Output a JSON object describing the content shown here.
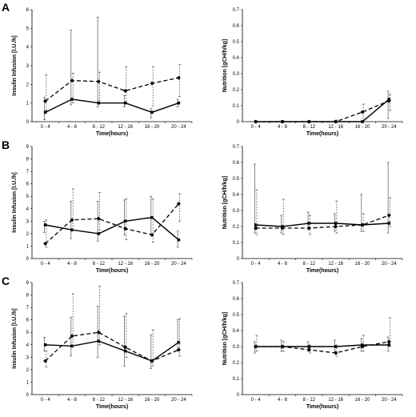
{
  "panel_letters": [
    "A",
    "B",
    "C"
  ],
  "chart_data": [
    {
      "type": "line",
      "panel": "A",
      "categories": [
        "0 - 4",
        "4 - 8",
        "8 - 12",
        "12 - 16",
        "16 - 20",
        "20 - 24"
      ],
      "xlabel": "Time(hours)",
      "ylabel": "Insulin Infusion [I.U./h]",
      "ylim": [
        0,
        6
      ],
      "yticks": [
        0,
        1,
        2,
        3,
        4,
        5,
        6
      ],
      "series": [
        {
          "style": "solid",
          "values": [
            0.5,
            1.2,
            1.0,
            1.0,
            0.5,
            1.0
          ],
          "err_up": [
            0.8,
            3.7,
            4.6,
            0.4,
            0.2,
            0.2
          ],
          "err_down": [
            0.4,
            0.3,
            0.2,
            0.2,
            0.3,
            0.2
          ]
        },
        {
          "style": "dashed",
          "values": [
            1.1,
            2.2,
            2.15,
            1.65,
            2.05,
            2.35
          ],
          "err_up": [
            1.4,
            0.4,
            0.5,
            1.3,
            0.9,
            0.7
          ],
          "err_down": [
            0.5,
            1.2,
            1.0,
            0.6,
            1.2,
            1.0
          ]
        }
      ]
    },
    {
      "type": "line",
      "panel": "A",
      "categories": [
        "0 - 4",
        "4 - 8",
        "8 - 12",
        "12 - 16",
        "16 - 20",
        "20 - 24"
      ],
      "xlabel": "Time(hours)",
      "ylabel": "Nutrition [gCH/h/kg]",
      "ylim": [
        0,
        0.7
      ],
      "yticks": [
        "0",
        "0.1",
        "0.2",
        "0.3",
        "0.4",
        "0.5",
        "0.6",
        "0.7"
      ],
      "series": [
        {
          "style": "solid",
          "values": [
            0,
            0,
            0,
            0,
            0,
            0.14
          ],
          "err_up": [
            0,
            0,
            0,
            0,
            0,
            0.05
          ],
          "err_down": [
            0,
            0,
            0,
            0,
            0,
            0.12
          ]
        },
        {
          "style": "dashed",
          "values": [
            0,
            0,
            0,
            0,
            0.06,
            0.13
          ],
          "err_up": [
            0,
            0,
            0,
            0.01,
            0.05,
            0.04
          ],
          "err_down": [
            0,
            0,
            0,
            0,
            0.04,
            0.06
          ]
        }
      ]
    },
    {
      "type": "line",
      "panel": "B",
      "categories": [
        "0 - 4",
        "4 - 8",
        "8 - 12",
        "12 - 16",
        "16 - 20",
        "20 - 24"
      ],
      "xlabel": "Time(hours)",
      "ylabel": "Insulin Infusion [I.U./h]",
      "ylim": [
        0,
        9
      ],
      "yticks": [
        0,
        1,
        2,
        3,
        4,
        5,
        6,
        7,
        8,
        9
      ],
      "series": [
        {
          "style": "solid",
          "values": [
            2.7,
            2.3,
            2.0,
            3.0,
            3.3,
            1.5
          ],
          "err_up": [
            0.3,
            2.3,
            2.6,
            1.7,
            1.7,
            0.7
          ],
          "err_down": [
            0.6,
            0.7,
            0.6,
            1.1,
            1.4,
            0.6
          ]
        },
        {
          "style": "dashed",
          "values": [
            1.2,
            3.1,
            3.2,
            2.4,
            1.9,
            4.4
          ],
          "err_up": [
            1.9,
            2.5,
            2.1,
            2.4,
            2.9,
            0.8
          ],
          "err_down": [
            0.3,
            0.8,
            0.9,
            0.9,
            0.6,
            1.4
          ]
        }
      ]
    },
    {
      "type": "line",
      "panel": "B",
      "categories": [
        "0 - 4",
        "4 - 8",
        "8 - 12",
        "12 - 16",
        "16 - 20",
        "20 - 24"
      ],
      "xlabel": "Time(hours)",
      "ylabel": "Nutrition [gCH/h/kg]",
      "ylim": [
        0,
        0.7
      ],
      "yticks": [
        "0",
        "0.1",
        "0.2",
        "0.3",
        "0.4",
        "0.5",
        "0.6",
        "0.7"
      ],
      "series": [
        {
          "style": "solid",
          "values": [
            0.21,
            0.2,
            0.22,
            0.22,
            0.21,
            0.22
          ],
          "err_up": [
            0.38,
            0.07,
            0.07,
            0.06,
            0.19,
            0.38
          ],
          "err_down": [
            0.05,
            0.04,
            0.04,
            0.05,
            0.04,
            0.06
          ]
        },
        {
          "style": "dashed",
          "values": [
            0.19,
            0.19,
            0.19,
            0.2,
            0.21,
            0.27
          ],
          "err_up": [
            0.24,
            0.18,
            0.08,
            0.16,
            0.07,
            0.11
          ],
          "err_down": [
            0.04,
            0.04,
            0.04,
            0.04,
            0.04,
            0.07
          ]
        }
      ]
    },
    {
      "type": "line",
      "panel": "C",
      "categories": [
        "0 - 4",
        "4 - 8",
        "8 - 12",
        "12 - 16",
        "16 - 20",
        "20 - 24"
      ],
      "xlabel": "Time(hours)",
      "ylabel": "Insulin Infusion [I.U./h]",
      "ylim": [
        0,
        9
      ],
      "yticks": [
        0,
        1,
        2,
        3,
        4,
        5,
        6,
        7,
        8,
        9
      ],
      "series": [
        {
          "style": "solid",
          "values": [
            4.0,
            3.9,
            4.3,
            3.5,
            2.7,
            4.2
          ],
          "err_up": [
            0.6,
            2.3,
            2.8,
            2.8,
            2.1,
            1.8
          ],
          "err_down": [
            0.5,
            0.8,
            1.3,
            1.2,
            0.6,
            0.7
          ]
        },
        {
          "style": "dashed",
          "values": [
            2.7,
            4.7,
            5.0,
            3.8,
            2.7,
            3.6
          ],
          "err_up": [
            0.8,
            3.4,
            3.7,
            2.7,
            2.5,
            2.5
          ],
          "err_down": [
            0.5,
            0.8,
            1.0,
            0.8,
            0.4,
            0.5
          ]
        }
      ]
    },
    {
      "type": "line",
      "panel": "C",
      "categories": [
        "0 - 4",
        "4 - 8",
        "8 - 12",
        "12 - 16",
        "16 - 20",
        "20 - 24"
      ],
      "xlabel": "Time(hours)",
      "ylabel": "Nutrition [gCH/h/kg]",
      "ylim": [
        0,
        0.7
      ],
      "yticks": [
        "0",
        "0.1",
        "0.2",
        "0.3",
        "0.4",
        "0.5",
        "0.6",
        "0.7"
      ],
      "series": [
        {
          "style": "solid",
          "values": [
            0.3,
            0.3,
            0.3,
            0.3,
            0.31,
            0.31
          ],
          "err_up": [
            0.03,
            0.04,
            0.03,
            0.04,
            0.04,
            0.05
          ],
          "err_down": [
            0.04,
            0.03,
            0.03,
            0.03,
            0.04,
            0.04
          ]
        },
        {
          "style": "dashed",
          "values": [
            0.3,
            0.3,
            0.28,
            0.26,
            0.3,
            0.33
          ],
          "err_up": [
            0.07,
            0.03,
            0.03,
            0.05,
            0.07,
            0.15
          ],
          "err_down": [
            0.03,
            0.03,
            0.02,
            0.02,
            0.03,
            0.03
          ]
        }
      ]
    }
  ]
}
